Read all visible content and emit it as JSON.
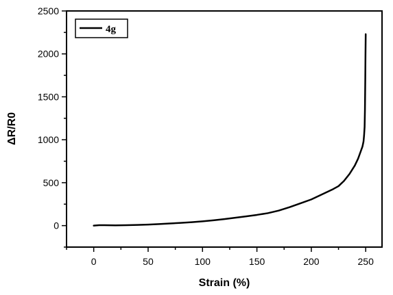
{
  "chart_data": {
    "type": "line",
    "xlabel": "Strain (%)",
    "ylabel": "ΔR/R0",
    "xlim": [
      -25,
      265
    ],
    "ylim": [
      -250,
      2500
    ],
    "xticks": [
      0,
      50,
      100,
      150,
      200,
      250
    ],
    "yticks": [
      0,
      500,
      1000,
      1500,
      2000,
      2500
    ],
    "grid": false,
    "legend_position": "top-left",
    "series": [
      {
        "name": "4g",
        "color": "#000000",
        "x": [
          0,
          5,
          10,
          20,
          30,
          40,
          50,
          60,
          70,
          80,
          90,
          100,
          110,
          120,
          130,
          140,
          150,
          160,
          170,
          180,
          190,
          200,
          205,
          210,
          215,
          220,
          225,
          230,
          235,
          240,
          243,
          245,
          247,
          248,
          248.5,
          249,
          249.3,
          249.6,
          249.8,
          250
        ],
        "y": [
          0,
          5,
          5,
          3,
          5,
          8,
          12,
          18,
          25,
          32,
          40,
          50,
          62,
          76,
          92,
          108,
          125,
          145,
          175,
          215,
          260,
          305,
          335,
          365,
          395,
          425,
          460,
          520,
          600,
          700,
          780,
          850,
          920,
          980,
          1050,
          1150,
          1350,
          1700,
          2000,
          2230
        ]
      }
    ]
  }
}
